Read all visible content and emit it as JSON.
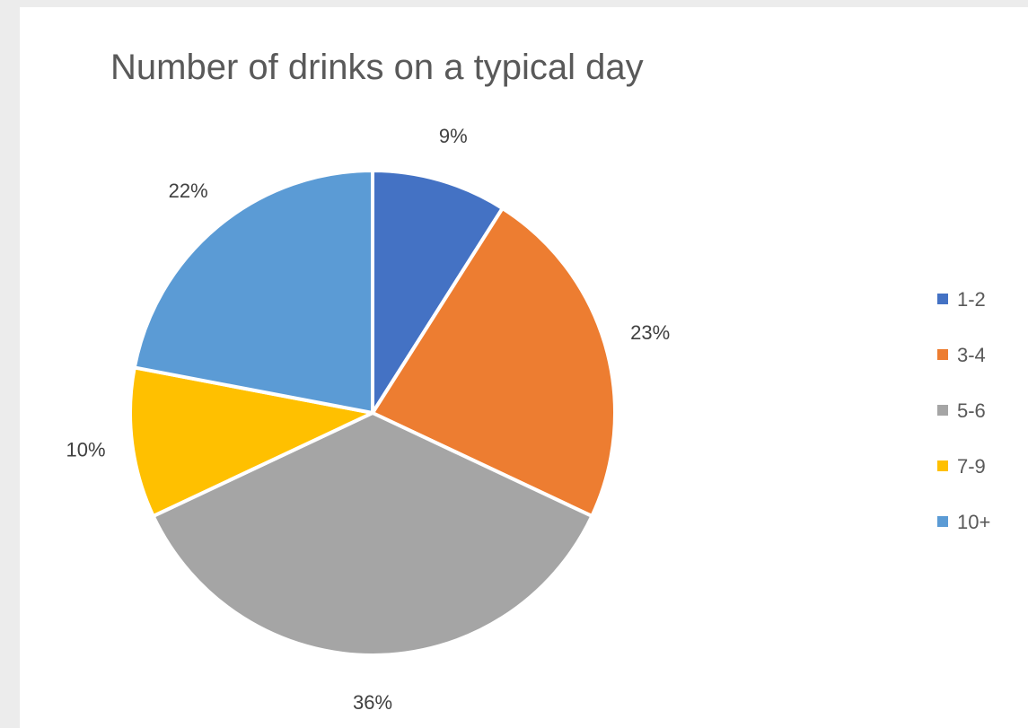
{
  "chart_data": {
    "type": "pie",
    "title": "Number of drinks on a typical day",
    "categories": [
      "1-2",
      "3-4",
      "5-6",
      "7-9",
      "10+"
    ],
    "values": [
      9,
      23,
      36,
      10,
      22
    ],
    "value_labels": [
      "9%",
      "23%",
      "36%",
      "10%",
      "22%"
    ],
    "colors": [
      "#4472c4",
      "#ed7d31",
      "#a5a5a5",
      "#ffc000",
      "#5b9bd5"
    ],
    "legend": "right",
    "start_angle_deg": 0,
    "direction": "clockwise"
  }
}
